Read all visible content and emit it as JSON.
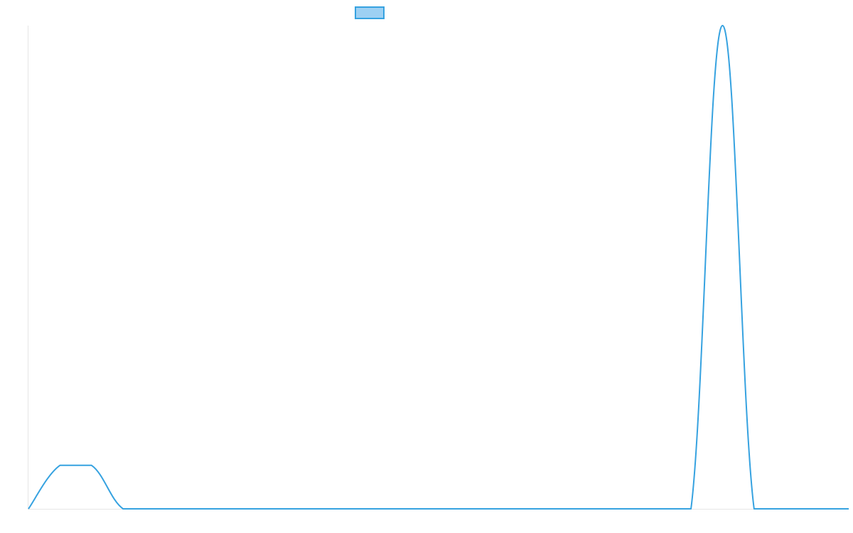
{
  "chart_data": {
    "type": "line",
    "title": "",
    "xlabel": "",
    "ylabel": "",
    "grid": false,
    "legend_position": "top",
    "x": [
      0,
      1,
      2,
      3,
      4,
      5,
      6,
      7,
      8,
      9,
      10,
      11,
      12,
      13,
      14,
      15,
      16,
      17,
      18,
      19,
      20,
      21,
      22,
      23,
      24,
      25,
      26
    ],
    "series": [
      {
        "name": "",
        "color": "#36a2e0",
        "fill_color": "#9dd0f3",
        "values": [
          0,
          9,
          9,
          0,
          0,
          0,
          0,
          0,
          0,
          0,
          0,
          0,
          0,
          0,
          0,
          0,
          0,
          0,
          0,
          0,
          0,
          0,
          100,
          0,
          0,
          0,
          0
        ]
      }
    ],
    "ylim": [
      0,
      100
    ]
  }
}
